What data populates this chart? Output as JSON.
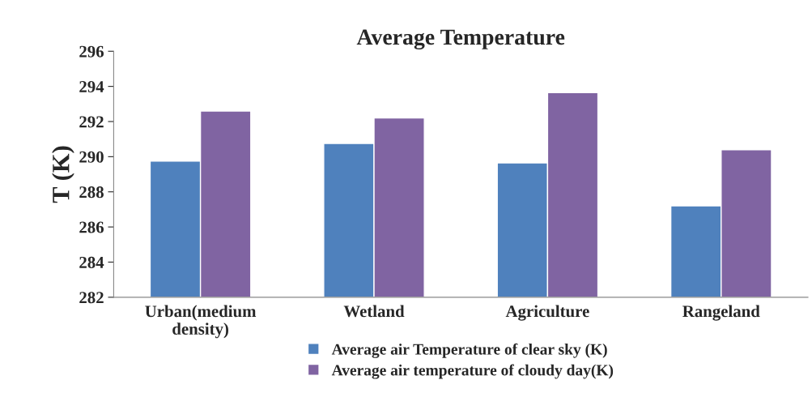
{
  "chart_data": {
    "type": "bar",
    "title": "Average Temperature",
    "ylabel": "T (K)",
    "categories": [
      "Urban(medium\ndensity)",
      "Wetland",
      "Agriculture",
      "Rangeland"
    ],
    "series": [
      {
        "name": "Average air Temperature of clear sky (K)",
        "color": "#4f81bd",
        "values": [
          289.75,
          290.75,
          289.65,
          287.2
        ]
      },
      {
        "name": "Average air temperature of cloudy day(K)",
        "color": "#8064a2",
        "values": [
          292.6,
          292.2,
          293.65,
          290.4
        ]
      }
    ],
    "ylim": [
      282,
      296
    ],
    "yticks": [
      282,
      284,
      286,
      288,
      290,
      292,
      294,
      296
    ],
    "grid": false,
    "legend": "bottom"
  }
}
